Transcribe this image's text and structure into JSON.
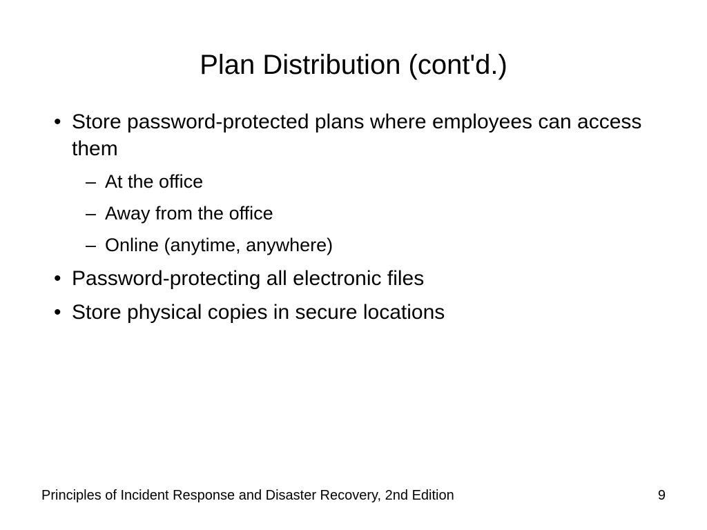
{
  "slide": {
    "title": "Plan Distribution (cont'd.)",
    "bullets": [
      {
        "text": "Store password-protected plans where employees can access them",
        "subitems": [
          "At the office",
          "Away from the office",
          "Online (anytime, anywhere)"
        ]
      },
      {
        "text": "Password-protecting all electronic files",
        "subitems": []
      },
      {
        "text": "Store physical copies in secure locations",
        "subitems": []
      }
    ],
    "footer_text": "Principles of Incident Response and Disaster Recovery, 2nd Edition",
    "page_number": "9"
  },
  "style": {
    "background_color": "#ffffff",
    "text_color": "#000000",
    "title_fontsize": 40,
    "body_fontsize": 30,
    "sub_fontsize": 27,
    "footer_fontsize": 20,
    "font_family": "Arial"
  }
}
